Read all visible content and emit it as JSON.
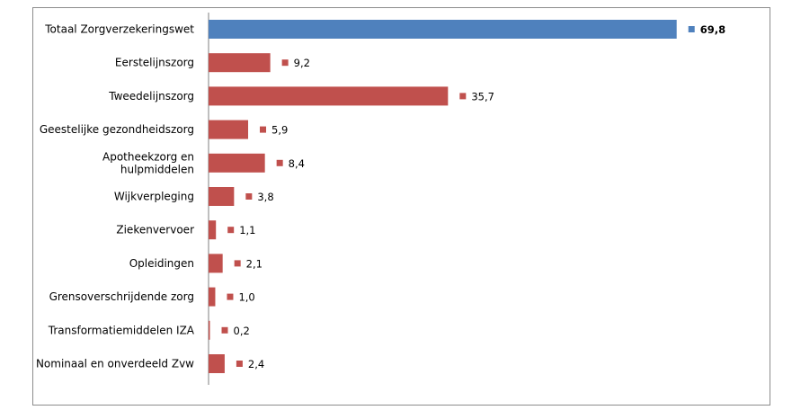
{
  "chart_data": {
    "type": "bar",
    "orientation": "horizontal",
    "categories": [
      "Totaal Zorgverzekeringswet",
      "Eerstelijnszorg",
      "Tweedelijnszorg",
      "Geestelijke gezondheidszorg",
      "Apotheekzorg en hulpmiddelen",
      "Wijkverpleging",
      "Ziekenvervoer",
      "Opleidingen",
      "Grensoverschrijdende zorg",
      "Transformatiemiddelen IZA",
      "Nominaal en onverdeeld Zvw"
    ],
    "category_lines": [
      [
        "Totaal Zorgverzekeringswet"
      ],
      [
        "Eerstelijnszorg"
      ],
      [
        "Tweedelijnszorg"
      ],
      [
        "Geestelijke gezondheidszorg"
      ],
      [
        "Apotheekzorg en",
        "hulpmiddelen"
      ],
      [
        "Wijkverpleging"
      ],
      [
        "Ziekenvervoer"
      ],
      [
        "Opleidingen"
      ],
      [
        "Grensoverschrijdende zorg"
      ],
      [
        "Transformatiemiddelen IZA"
      ],
      [
        "Nominaal en onverdeeld Zvw"
      ]
    ],
    "values": [
      69.8,
      9.2,
      35.7,
      5.9,
      8.4,
      3.8,
      1.1,
      2.1,
      1.0,
      0.2,
      2.4
    ],
    "value_labels": [
      "69,8",
      "9,2",
      "35,7",
      "5,9",
      "8,4",
      "3,8",
      "1,1",
      "2,1",
      "1,0",
      "0,2",
      "2,4"
    ],
    "total_index": 0,
    "colors": {
      "total": "#4f81bd",
      "component": "#c0504d",
      "axis": "#7f7f7f"
    },
    "xlim": [
      0,
      75
    ],
    "grid": false,
    "legend": "none",
    "title": "",
    "xlabel": "",
    "ylabel": ""
  }
}
